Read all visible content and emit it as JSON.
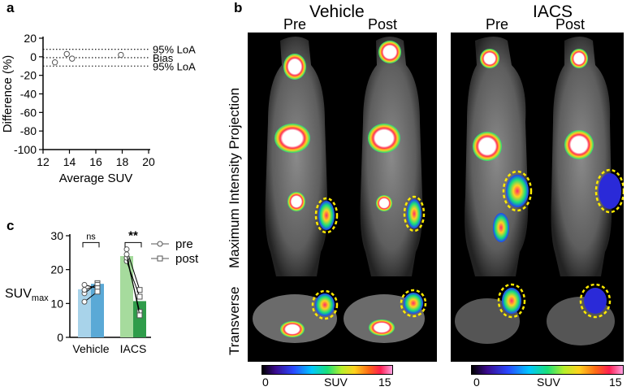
{
  "panels": {
    "a": "a",
    "b": "b",
    "c": "c"
  },
  "chart_data": [
    {
      "panel": "a",
      "type": "scatter",
      "xlabel": "Average SUV",
      "ylabel": "Difference (%)",
      "xlim": [
        12,
        20
      ],
      "ylim": [
        -100,
        20
      ],
      "xticks": [
        "12",
        "14",
        "16",
        "18",
        "20"
      ],
      "yticks": [
        "20",
        "0",
        "-20",
        "-40",
        "-60",
        "-80",
        "-100"
      ],
      "points": [
        {
          "x": 12.9,
          "y": -6
        },
        {
          "x": 13.8,
          "y": 3
        },
        {
          "x": 14.2,
          "y": -2
        },
        {
          "x": 17.9,
          "y": 2
        }
      ],
      "reference_lines": [
        {
          "label": "95% LoA",
          "y": 8
        },
        {
          "label": "Bias",
          "y": -1
        },
        {
          "label": "95% LoA",
          "y": -10
        }
      ]
    },
    {
      "panel": "c",
      "type": "bar",
      "ylabel_main": "SUV",
      "ylabel_sub": "max",
      "ylim": [
        0,
        30
      ],
      "yticks": [
        "0",
        "10",
        "20",
        "30"
      ],
      "categories": [
        "Vehicle",
        "IACS"
      ],
      "series": [
        {
          "name": "pre",
          "values": [
            14.2,
            24.0
          ],
          "colors": [
            "#a8d3ea",
            "#a6db9d"
          ]
        },
        {
          "name": "post",
          "values": [
            15.8,
            10.7
          ],
          "colors": [
            "#5aa9d6",
            "#2f9c4a"
          ]
        }
      ],
      "paired_points": [
        {
          "category": "Vehicle",
          "pre": 13.0,
          "post": 16.0
        },
        {
          "category": "Vehicle",
          "pre": 14.0,
          "post": 15.5
        },
        {
          "category": "Vehicle",
          "pre": 15.5,
          "post": 14.5
        },
        {
          "category": "Vehicle",
          "pre": 10.5,
          "post": 13.5
        },
        {
          "category": "IACS",
          "pre": 26.0,
          "post": 14.0
        },
        {
          "category": "IACS",
          "pre": 22.5,
          "post": 12.0
        },
        {
          "category": "IACS",
          "pre": 23.5,
          "post": 7.5
        },
        {
          "category": "IACS",
          "pre": 24.5,
          "post": 6.5
        }
      ],
      "significance": [
        {
          "category": "Vehicle",
          "label": "ns"
        },
        {
          "category": "IACS",
          "label": "**"
        }
      ],
      "legend": {
        "placement": "right",
        "items": [
          "pre",
          "post"
        ]
      }
    }
  ],
  "imaging": {
    "groups": [
      {
        "title": "Vehicle",
        "columns": [
          "Pre",
          "Post"
        ]
      },
      {
        "title": "IACS",
        "columns": [
          "Pre",
          "Post"
        ]
      }
    ],
    "row_labels": [
      "Maximum Intensity Projection",
      "Transverse"
    ],
    "colorbar": {
      "min": "0",
      "label": "SUV",
      "max": "15"
    },
    "tumor_outline_color": "#ffeb00"
  }
}
